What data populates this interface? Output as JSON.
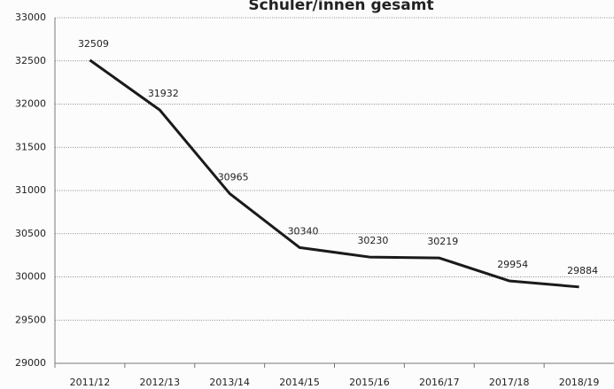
{
  "chart_data": {
    "type": "line",
    "title": "Schüler/innen gesamt",
    "categories": [
      "2011/12",
      "2012/13",
      "2013/14",
      "2014/15",
      "2015/16",
      "2016/17",
      "2017/18",
      "2018/19"
    ],
    "values": [
      32509,
      31932,
      30965,
      30340,
      30230,
      30219,
      29954,
      29884
    ],
    "color": "#1a1a1a",
    "ylim": [
      29000,
      33000
    ],
    "yticks": [
      29000,
      29500,
      30000,
      30500,
      31000,
      31500,
      32000,
      32500,
      33000
    ],
    "grid": true
  }
}
